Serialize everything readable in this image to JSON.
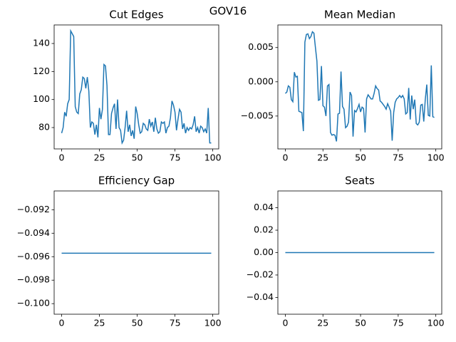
{
  "title": "GOV16",
  "chart_data": [
    {
      "type": "line",
      "title": "Cut Edges",
      "x": [
        0,
        1,
        2,
        3,
        4,
        5,
        6,
        7,
        8,
        9,
        10,
        11,
        12,
        13,
        14,
        15,
        16,
        17,
        18,
        19,
        20,
        21,
        22,
        23,
        24,
        25,
        26,
        27,
        28,
        29,
        30,
        31,
        32,
        33,
        34,
        35,
        36,
        37,
        38,
        39,
        40,
        41,
        42,
        43,
        44,
        45,
        46,
        47,
        48,
        49,
        50,
        51,
        52,
        53,
        54,
        55,
        56,
        57,
        58,
        59,
        60,
        61,
        62,
        63,
        64,
        65,
        66,
        67,
        68,
        69,
        70,
        71,
        72,
        73,
        74,
        75,
        76,
        77,
        78,
        79,
        80,
        81,
        82,
        83,
        84,
        85,
        86,
        87,
        88,
        89,
        90,
        91,
        92,
        93,
        94,
        95,
        96,
        97,
        98,
        99
      ],
      "series": [
        {
          "color": "#1f77b4",
          "values": [
            76,
            80,
            91,
            88,
            97,
            100,
            149,
            147,
            145,
            95,
            91,
            90,
            104,
            107,
            116,
            115,
            108,
            116,
            106,
            80,
            84,
            83,
            75,
            82,
            73,
            94,
            86,
            93,
            125,
            124,
            110,
            75,
            75,
            90,
            94,
            97,
            79,
            100,
            80,
            78,
            69,
            71,
            80,
            92,
            77,
            82,
            74,
            78,
            72,
            95,
            90,
            82,
            76,
            77,
            83,
            82,
            79,
            78,
            86,
            81,
            84,
            77,
            87,
            79,
            76,
            77,
            84,
            83,
            84,
            76,
            80,
            81,
            87,
            99,
            96,
            91,
            78,
            86,
            93,
            91,
            79,
            83,
            76,
            80,
            78,
            80,
            79,
            82,
            88,
            77,
            80,
            76,
            81,
            80,
            77,
            79,
            76,
            94,
            69,
            69
          ]
        }
      ],
      "xlim": [
        -4.95,
        103.95
      ],
      "xticks": [
        0,
        25,
        50,
        75,
        100
      ],
      "ylim": [
        64.75,
        153.25
      ],
      "yticks": [
        80,
        100,
        120,
        140
      ]
    },
    {
      "type": "line",
      "title": "Mean Median",
      "x": [
        0,
        1,
        2,
        3,
        4,
        5,
        6,
        7,
        8,
        9,
        10,
        11,
        12,
        13,
        14,
        15,
        16,
        17,
        18,
        19,
        20,
        21,
        22,
        23,
        24,
        25,
        26,
        27,
        28,
        29,
        30,
        31,
        32,
        33,
        34,
        35,
        36,
        37,
        38,
        39,
        40,
        41,
        42,
        43,
        44,
        45,
        46,
        47,
        48,
        49,
        50,
        51,
        52,
        53,
        54,
        55,
        56,
        57,
        58,
        59,
        60,
        61,
        62,
        63,
        64,
        65,
        66,
        67,
        68,
        69,
        70,
        71,
        72,
        73,
        74,
        75,
        76,
        77,
        78,
        79,
        80,
        81,
        82,
        83,
        84,
        85,
        86,
        87,
        88,
        89,
        90,
        91,
        92,
        93,
        94,
        95,
        96,
        97,
        98,
        99
      ],
      "series": [
        {
          "color": "#1f77b4",
          "values": [
            -0.0017,
            -0.0015,
            -0.0006,
            -0.0008,
            -0.0026,
            -0.0029,
            0.0014,
            0.0007,
            0.0008,
            -0.0043,
            -0.0044,
            -0.0045,
            -0.0072,
            0.0058,
            0.0069,
            0.007,
            0.0063,
            0.0066,
            0.0073,
            0.0071,
            0.005,
            0.003,
            -0.0027,
            -0.0026,
            0.0023,
            -0.0035,
            -0.0037,
            -0.005,
            -0.0006,
            -0.0004,
            -0.0074,
            -0.0078,
            -0.0077,
            -0.0078,
            -0.0087,
            -0.0047,
            -0.0046,
            0.0015,
            -0.0036,
            -0.004,
            -0.0067,
            -0.0065,
            -0.0059,
            -0.0015,
            -0.002,
            -0.008,
            -0.0042,
            -0.0044,
            -0.0039,
            -0.0033,
            -0.0044,
            -0.0037,
            -0.0039,
            -0.0074,
            -0.0025,
            -0.0019,
            -0.0022,
            -0.0025,
            -0.0025,
            -0.0017,
            -0.0006,
            -0.001,
            -0.0012,
            -0.0028,
            -0.003,
            -0.0033,
            -0.0036,
            -0.004,
            -0.0032,
            -0.0037,
            -0.0043,
            -0.0086,
            -0.0045,
            -0.003,
            -0.0025,
            -0.0023,
            -0.002,
            -0.0023,
            -0.002,
            -0.0025,
            -0.0047,
            -0.0045,
            -0.0009,
            -0.0055,
            -0.002,
            -0.004,
            -0.0026,
            -0.0061,
            -0.0063,
            -0.0059,
            -0.0034,
            -0.0033,
            -0.0058,
            -0.0026,
            -0.0004,
            -0.0049,
            -0.005,
            0.0024,
            -0.0051,
            -0.0052
          ]
        }
      ],
      "xlim": [
        -4.95,
        103.95
      ],
      "xticks": [
        0,
        25,
        50,
        75,
        100
      ],
      "ylim": [
        -0.0098,
        0.0083
      ],
      "yticks": [
        {
          "value": -0.005,
          "label": "−0.005"
        },
        {
          "value": 0,
          "label": "0.000"
        },
        {
          "value": 0.005,
          "label": "0.005"
        }
      ]
    },
    {
      "type": "line",
      "title": "Efficiency Gap",
      "x": [
        0,
        1,
        2,
        3,
        4,
        5,
        6,
        7,
        8,
        9,
        10,
        11,
        12,
        13,
        14,
        15,
        16,
        17,
        18,
        19,
        20,
        21,
        22,
        23,
        24,
        25,
        26,
        27,
        28,
        29,
        30,
        31,
        32,
        33,
        34,
        35,
        36,
        37,
        38,
        39,
        40,
        41,
        42,
        43,
        44,
        45,
        46,
        47,
        48,
        49,
        50,
        51,
        52,
        53,
        54,
        55,
        56,
        57,
        58,
        59,
        60,
        61,
        62,
        63,
        64,
        65,
        66,
        67,
        68,
        69,
        70,
        71,
        72,
        73,
        74,
        75,
        76,
        77,
        78,
        79,
        80,
        81,
        82,
        83,
        84,
        85,
        86,
        87,
        88,
        89,
        90,
        91,
        92,
        93,
        94,
        95,
        96,
        97,
        98,
        99
      ],
      "series": [
        {
          "color": "#1f77b4",
          "values": [
            -0.0957,
            -0.0957,
            -0.0957,
            -0.0957,
            -0.0957,
            -0.0957,
            -0.0957,
            -0.0957,
            -0.0957,
            -0.0957,
            -0.0957,
            -0.0957,
            -0.0957,
            -0.0957,
            -0.0957,
            -0.0957,
            -0.0957,
            -0.0957,
            -0.0957,
            -0.0957,
            -0.0957,
            -0.0957,
            -0.0957,
            -0.0957,
            -0.0957,
            -0.0957,
            -0.0957,
            -0.0957,
            -0.0957,
            -0.0957,
            -0.0957,
            -0.0957,
            -0.0957,
            -0.0957,
            -0.0957,
            -0.0957,
            -0.0957,
            -0.0957,
            -0.0957,
            -0.0957,
            -0.0957,
            -0.0957,
            -0.0957,
            -0.0957,
            -0.0957,
            -0.0957,
            -0.0957,
            -0.0957,
            -0.0957,
            -0.0957,
            -0.0957,
            -0.0957,
            -0.0957,
            -0.0957,
            -0.0957,
            -0.0957,
            -0.0957,
            -0.0957,
            -0.0957,
            -0.0957,
            -0.0957,
            -0.0957,
            -0.0957,
            -0.0957,
            -0.0957,
            -0.0957,
            -0.0957,
            -0.0957,
            -0.0957,
            -0.0957,
            -0.0957,
            -0.0957,
            -0.0957,
            -0.0957,
            -0.0957,
            -0.0957,
            -0.0957,
            -0.0957,
            -0.0957,
            -0.0957,
            -0.0957,
            -0.0957,
            -0.0957,
            -0.0957,
            -0.0957,
            -0.0957,
            -0.0957,
            -0.0957,
            -0.0957,
            -0.0957,
            -0.0957,
            -0.0957,
            -0.0957,
            -0.0957,
            -0.0957,
            -0.0957,
            -0.0957,
            -0.0957,
            -0.0957,
            -0.0957
          ]
        }
      ],
      "xlim": [
        -4.95,
        103.95
      ],
      "xticks": [
        0,
        25,
        50,
        75,
        100
      ],
      "ylim": [
        -0.1009,
        -0.0904
      ],
      "yticks": [
        {
          "value": -0.1,
          "label": "−0.100"
        },
        {
          "value": -0.098,
          "label": "−0.098"
        },
        {
          "value": -0.096,
          "label": "−0.096"
        },
        {
          "value": -0.094,
          "label": "−0.094"
        },
        {
          "value": -0.092,
          "label": "−0.092"
        }
      ]
    },
    {
      "type": "line",
      "title": "Seats",
      "x": [
        0,
        1,
        2,
        3,
        4,
        5,
        6,
        7,
        8,
        9,
        10,
        11,
        12,
        13,
        14,
        15,
        16,
        17,
        18,
        19,
        20,
        21,
        22,
        23,
        24,
        25,
        26,
        27,
        28,
        29,
        30,
        31,
        32,
        33,
        34,
        35,
        36,
        37,
        38,
        39,
        40,
        41,
        42,
        43,
        44,
        45,
        46,
        47,
        48,
        49,
        50,
        51,
        52,
        53,
        54,
        55,
        56,
        57,
        58,
        59,
        60,
        61,
        62,
        63,
        64,
        65,
        66,
        67,
        68,
        69,
        70,
        71,
        72,
        73,
        74,
        75,
        76,
        77,
        78,
        79,
        80,
        81,
        82,
        83,
        84,
        85,
        86,
        87,
        88,
        89,
        90,
        91,
        92,
        93,
        94,
        95,
        96,
        97,
        98,
        99
      ],
      "series": [
        {
          "color": "#1f77b4",
          "values": [
            0,
            0,
            0,
            0,
            0,
            0,
            0,
            0,
            0,
            0,
            0,
            0,
            0,
            0,
            0,
            0,
            0,
            0,
            0,
            0,
            0,
            0,
            0,
            0,
            0,
            0,
            0,
            0,
            0,
            0,
            0,
            0,
            0,
            0,
            0,
            0,
            0,
            0,
            0,
            0,
            0,
            0,
            0,
            0,
            0,
            0,
            0,
            0,
            0,
            0,
            0,
            0,
            0,
            0,
            0,
            0,
            0,
            0,
            0,
            0,
            0,
            0,
            0,
            0,
            0,
            0,
            0,
            0,
            0,
            0,
            0,
            0,
            0,
            0,
            0,
            0,
            0,
            0,
            0,
            0,
            0,
            0,
            0,
            0,
            0,
            0,
            0,
            0,
            0,
            0,
            0,
            0,
            0,
            0,
            0,
            0,
            0,
            0,
            0,
            0
          ]
        }
      ],
      "xlim": [
        -4.95,
        103.95
      ],
      "xticks": [
        0,
        25,
        50,
        75,
        100
      ],
      "ylim": [
        -0.055,
        0.055
      ],
      "yticks": [
        {
          "value": -0.04,
          "label": "−0.04"
        },
        {
          "value": -0.02,
          "label": "−0.02"
        },
        {
          "value": 0,
          "label": "0.00"
        },
        {
          "value": 0.02,
          "label": "0.02"
        },
        {
          "value": 0.04,
          "label": "0.04"
        }
      ]
    }
  ]
}
